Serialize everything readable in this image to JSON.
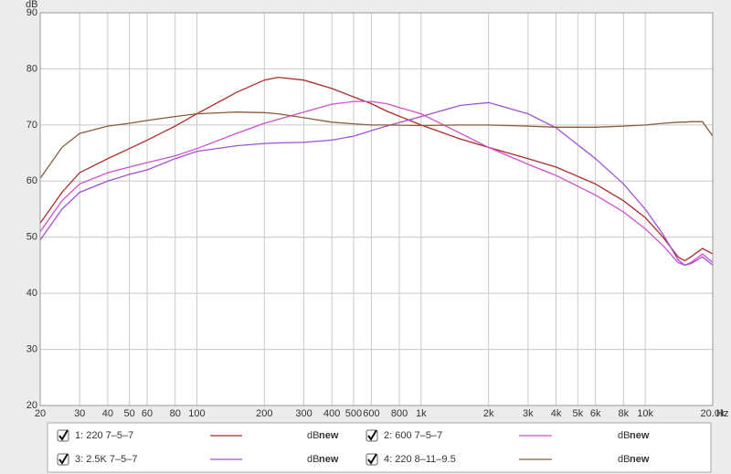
{
  "chart_data": {
    "type": "line",
    "x_label": "Hz",
    "y_label": "dB",
    "log_x": true,
    "grid": true,
    "x": [
      20,
      25,
      30,
      40,
      50,
      60,
      80,
      100,
      150,
      200,
      230,
      300,
      400,
      500,
      600,
      700,
      1000,
      1500,
      2000,
      3000,
      4000,
      6000,
      8000,
      10000,
      12000,
      14000,
      15000,
      16000,
      18000,
      20000
    ],
    "xlim": [
      20,
      20000
    ],
    "xticks": [
      20,
      30,
      40,
      50,
      60,
      80,
      100,
      200,
      300,
      400,
      500,
      600,
      800,
      {
        "value": 1000,
        "label": "1k"
      },
      {
        "value": 2000,
        "label": "2k"
      },
      {
        "value": 3000,
        "label": "3k"
      },
      {
        "value": 4000,
        "label": "4k"
      },
      {
        "value": 5000,
        "label": "5k"
      },
      {
        "value": 6000,
        "label": "6k"
      },
      {
        "value": 8000,
        "label": "8k"
      },
      {
        "value": 10000,
        "label": "10k"
      },
      {
        "value": 20000,
        "label": "20.0k"
      }
    ],
    "ylim": [
      20,
      90
    ],
    "yticks": [
      20,
      30,
      40,
      50,
      60,
      70,
      80,
      90
    ],
    "legend_tag": [
      "dB",
      "new"
    ],
    "series": [
      {
        "name": "1: 220 7–5–7",
        "color": "#b02a2a",
        "values": [
          52.5,
          58,
          61.5,
          64,
          65.8,
          67.3,
          69.8,
          72,
          75.8,
          78,
          78.5,
          78,
          76.5,
          75,
          73.8,
          72.5,
          70,
          67.5,
          66,
          64,
          62.5,
          59.5,
          56.5,
          53.5,
          50,
          46.5,
          45.8,
          46.5,
          48,
          47
        ]
      },
      {
        "name": "2: 600 7–5–7",
        "color": "#d050d0",
        "values": [
          51,
          56.5,
          59.5,
          61.5,
          62.5,
          63.3,
          64.5,
          65.8,
          68.5,
          70.3,
          71,
          72.3,
          73.7,
          74.2,
          74.2,
          73.8,
          72,
          68.5,
          66,
          63,
          61,
          57.5,
          54.5,
          51.5,
          48.5,
          45.5,
          45,
          45.5,
          47,
          45.5
        ]
      },
      {
        "name": "3: 2.5K 7–5–7",
        "color": "#a050d8",
        "values": [
          49.5,
          55,
          58,
          60,
          61.2,
          62,
          64,
          65.3,
          66.3,
          66.7,
          66.8,
          66.9,
          67.3,
          68,
          69,
          69.8,
          71.5,
          73.5,
          74,
          72,
          69.5,
          64,
          59.5,
          55,
          50.5,
          46,
          45,
          45.3,
          46.5,
          45
        ]
      },
      {
        "name": "4: 220 8–11–9.5",
        "color": "#8b5a3a",
        "values": [
          60.5,
          66,
          68.5,
          69.8,
          70.3,
          70.8,
          71.5,
          72,
          72.3,
          72.2,
          72,
          71.3,
          70.5,
          70.2,
          70,
          70,
          69.9,
          70,
          70,
          69.8,
          69.6,
          69.6,
          69.8,
          70,
          70.3,
          70.5,
          70.5,
          70.6,
          70.6,
          68
        ]
      }
    ]
  }
}
